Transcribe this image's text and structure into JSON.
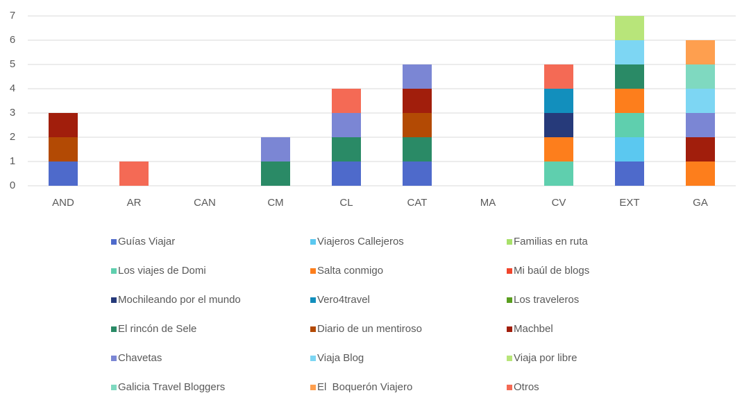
{
  "chart_data": {
    "type": "stacked_bar",
    "categories": [
      "AND",
      "AR",
      "CAN",
      "CM",
      "CL",
      "CAT",
      "MA",
      "CV",
      "EXT",
      "GA"
    ],
    "ylim": [
      0,
      7
    ],
    "yticks": [
      0,
      1,
      2,
      3,
      4,
      5,
      6,
      7
    ],
    "grid": true,
    "legend": "bottom",
    "series": [
      {
        "name": "Guías Viajar",
        "color": "#4e6acb",
        "values": [
          1,
          0,
          0,
          0,
          1,
          1,
          0,
          0,
          1,
          0
        ]
      },
      {
        "name": "Viajeros Callejeros",
        "color": "#5bc8f0",
        "values": [
          0,
          0,
          0,
          0,
          0,
          0,
          0,
          0,
          1,
          0
        ]
      },
      {
        "name": "Familias en ruta",
        "color": "#a8e06a",
        "values": [
          0,
          0,
          0,
          0,
          0,
          0,
          0,
          0,
          0,
          0
        ]
      },
      {
        "name": "Los viajes de Domi",
        "color": "#5fcfae",
        "values": [
          0,
          0,
          0,
          0,
          0,
          0,
          0,
          1,
          1,
          0
        ]
      },
      {
        "name": "Salta conmigo",
        "color": "#fd7e1c",
        "values": [
          0,
          0,
          0,
          0,
          0,
          0,
          0,
          1,
          1,
          1
        ]
      },
      {
        "name": "Mi baúl de blogs",
        "color": "#f0452c",
        "values": [
          0,
          0,
          0,
          0,
          0,
          0,
          0,
          0,
          0,
          0
        ]
      },
      {
        "name": "Mochileando por el mundo",
        "color": "#263a7a",
        "values": [
          0,
          0,
          0,
          0,
          0,
          0,
          0,
          1,
          0,
          0
        ]
      },
      {
        "name": "Vero4travel",
        "color": "#128fbd",
        "values": [
          0,
          0,
          0,
          0,
          0,
          0,
          0,
          1,
          0,
          0
        ]
      },
      {
        "name": "Los traveleros",
        "color": "#5a9e1f",
        "values": [
          0,
          0,
          0,
          0,
          0,
          0,
          0,
          0,
          0,
          0
        ]
      },
      {
        "name": "El rincón de Sele",
        "color": "#2a8a66",
        "values": [
          0,
          0,
          0,
          1,
          1,
          1,
          0,
          0,
          1,
          0
        ]
      },
      {
        "name": "Diario de un mentiroso",
        "color": "#b34a04",
        "values": [
          1,
          0,
          0,
          0,
          0,
          1,
          0,
          0,
          0,
          0
        ]
      },
      {
        "name": "Machbel",
        "color": "#a11e0c",
        "values": [
          1,
          0,
          0,
          0,
          0,
          1,
          0,
          0,
          0,
          1
        ]
      },
      {
        "name": "Chavetas",
        "color": "#7b86d4",
        "values": [
          0,
          0,
          0,
          1,
          1,
          1,
          0,
          0,
          0,
          1
        ]
      },
      {
        "name": "Viaja Blog",
        "color": "#7dd6f3",
        "values": [
          0,
          0,
          0,
          0,
          0,
          0,
          0,
          0,
          1,
          1
        ]
      },
      {
        "name": "Viaja por libre",
        "color": "#b8e57a",
        "values": [
          0,
          0,
          0,
          0,
          0,
          0,
          0,
          0,
          1,
          0
        ]
      },
      {
        "name": "Galicia Travel Bloggers",
        "color": "#7fd9c0",
        "values": [
          0,
          0,
          0,
          0,
          0,
          0,
          0,
          0,
          0,
          1
        ]
      },
      {
        "name": "El  Boquerón Viajero",
        "color": "#fe9f4f",
        "values": [
          0,
          0,
          0,
          0,
          0,
          0,
          0,
          0,
          0,
          1
        ]
      },
      {
        "name": "Otros",
        "color": "#f46a55",
        "values": [
          0,
          1,
          0,
          0,
          1,
          0,
          0,
          1,
          0,
          0
        ]
      }
    ]
  }
}
